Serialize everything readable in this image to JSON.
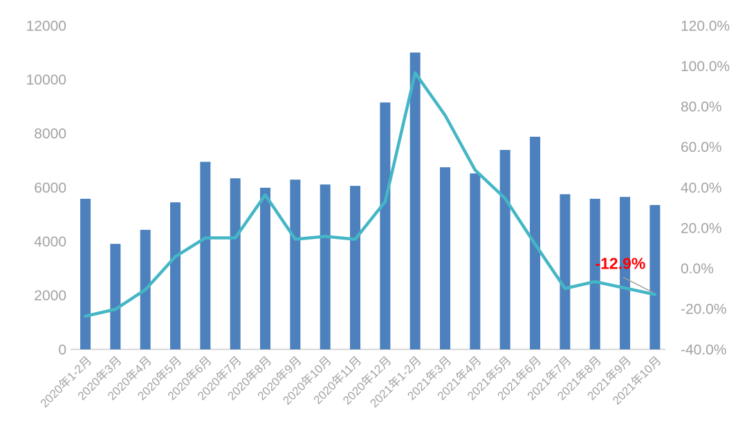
{
  "chart_data": {
    "type": "combo",
    "title": "",
    "categories": [
      "2020年1-2月",
      "2020年3月",
      "2020年4月",
      "2020年5月",
      "2020年6月",
      "2020年7月",
      "2020年8月",
      "2020年9月",
      "2020年10月",
      "2020年11月",
      "2020年12月",
      "2021年1-2月",
      "2021年3月",
      "2021年4月",
      "2021年5月",
      "2021年6月",
      "2021年7月",
      "2021年8月",
      "2021年9月",
      "2021年10月"
    ],
    "series": [
      {
        "name": "monthly-volume-bars",
        "type": "bar",
        "axis": "left",
        "color": "#4c81be",
        "values": [
          5580,
          3910,
          4430,
          5450,
          6950,
          6340,
          5990,
          6290,
          6110,
          6060,
          9150,
          11000,
          6750,
          6520,
          7390,
          7880,
          5750,
          5580,
          5650,
          5350
        ]
      },
      {
        "name": "yoy-growth-line",
        "type": "line",
        "axis": "right",
        "color": "#45b6c6",
        "values": [
          -23.6,
          -20.2,
          -10.5,
          5.8,
          15.1,
          15.1,
          36.3,
          14.4,
          15.8,
          14.4,
          33.0,
          96.6,
          75.7,
          48.6,
          34.6,
          12.0,
          -9.9,
          -6.5,
          -9.7,
          -12.9
        ]
      }
    ],
    "left_axis": {
      "min": 0,
      "max": 12000,
      "step": 2000,
      "tick_labels": [
        "0",
        "2000",
        "4000",
        "6000",
        "8000",
        "10000",
        "12000"
      ]
    },
    "right_axis": {
      "min": -40,
      "max": 120,
      "step": 20,
      "tick_labels": [
        "-40.0%",
        "-20.0%",
        "0.0%",
        "20.0%",
        "40.0%",
        "60.0%",
        "80.0%",
        "100.0%",
        "120.0%"
      ]
    },
    "annotation": {
      "text": "-12.9%",
      "color": "#ff0000",
      "target_index": 19
    },
    "grid": "off",
    "legend": "none",
    "axis_label_color": "#a3a3a3",
    "baseline_color": "#d9d9d9",
    "leader_line_color": "#a0a0a0",
    "background": "#ffffff"
  }
}
